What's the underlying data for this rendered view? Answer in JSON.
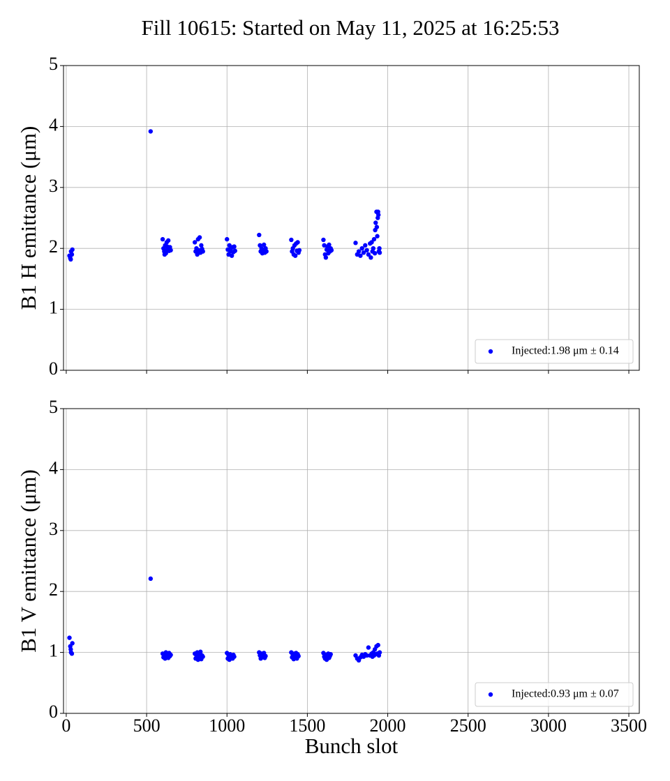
{
  "title": "Fill 10615: Started on May 11, 2025 at 16:25:53",
  "chart_data": [
    {
      "type": "scatter",
      "ylabel": "B1 H emittance (μm)",
      "show_xtick_labels": false,
      "xlim": [
        -17,
        3565
      ],
      "ylim": [
        0,
        5
      ],
      "xticks": [
        0,
        500,
        1000,
        1500,
        2000,
        2500,
        3000,
        3500
      ],
      "yticks": [
        0,
        1,
        2,
        3,
        4,
        5
      ],
      "grid": true,
      "legend": "lower right",
      "series": [
        {
          "name": "Injected:1.98 μm ± 0.14",
          "color": "#0000ff",
          "x": [
            20,
            25,
            30,
            35,
            38,
            28,
            525,
            600,
            605,
            610,
            615,
            620,
            625,
            630,
            635,
            640,
            645,
            650,
            612,
            628,
            800,
            805,
            810,
            815,
            820,
            825,
            830,
            835,
            840,
            845,
            850,
            818,
            1000,
            1005,
            1010,
            1015,
            1020,
            1025,
            1030,
            1035,
            1040,
            1045,
            1050,
            1200,
            1205,
            1210,
            1215,
            1220,
            1225,
            1230,
            1235,
            1240,
            1245,
            1400,
            1405,
            1410,
            1415,
            1420,
            1425,
            1430,
            1435,
            1440,
            1445,
            1450,
            1600,
            1605,
            1610,
            1615,
            1620,
            1625,
            1630,
            1635,
            1640,
            1645,
            1650,
            1800,
            1810,
            1820,
            1830,
            1840,
            1850,
            1860,
            1870,
            1880,
            1890,
            1895,
            1900,
            1905,
            1910,
            1915,
            1920,
            1922,
            1925,
            1930,
            1932,
            1935,
            1938,
            1940,
            1942,
            1945,
            1948,
            1950
          ],
          "values": [
            1.88,
            1.84,
            1.95,
            1.9,
            1.98,
            1.82,
            3.92,
            2.15,
            2.0,
            1.95,
            2.05,
            1.92,
            2.1,
            1.98,
            2.13,
            1.96,
            2.02,
            1.97,
            1.9,
            2.03,
            2.1,
            1.95,
            2.0,
            1.9,
            2.15,
            1.97,
            2.18,
            1.93,
            2.05,
            1.99,
            1.95,
            1.92,
            2.15,
            1.98,
            1.9,
            2.05,
            1.95,
            2.0,
            1.88,
            2.02,
            1.94,
            2.03,
            1.96,
            2.22,
            2.05,
            1.95,
            2.0,
            1.92,
            1.97,
            2.06,
            1.93,
            2.0,
            1.95,
            2.14,
            1.95,
            2.0,
            1.9,
            2.05,
            1.88,
            2.08,
            1.96,
            2.1,
            1.93,
            1.97,
            2.14,
            2.05,
            1.9,
            1.85,
            1.98,
            2.03,
            1.92,
            2.06,
            1.95,
            2.0,
            1.97,
            2.09,
            1.9,
            1.95,
            1.88,
            2.0,
            1.93,
            2.05,
            1.97,
            1.9,
            2.08,
            1.85,
            2.1,
            1.95,
            2.0,
            2.15,
            1.92,
            2.3,
            2.42,
            2.6,
            2.35,
            2.2,
            2.5,
            2.6,
            2.55,
            1.95,
            2.0,
            1.93
          ]
        }
      ]
    },
    {
      "type": "scatter",
      "ylabel": "B1 V emittance (μm)",
      "xlabel": "Bunch slot",
      "show_xtick_labels": true,
      "xlim": [
        -17,
        3565
      ],
      "ylim": [
        0,
        5
      ],
      "xticks": [
        0,
        500,
        1000,
        1500,
        2000,
        2500,
        3000,
        3500
      ],
      "yticks": [
        0,
        1,
        2,
        3,
        4,
        5
      ],
      "grid": true,
      "legend": "lower right",
      "series": [
        {
          "name": "Injected:0.93 μm ± 0.07",
          "color": "#0000ff",
          "x": [
            20,
            25,
            30,
            35,
            38,
            28,
            525,
            600,
            605,
            610,
            615,
            620,
            625,
            630,
            635,
            640,
            645,
            650,
            800,
            805,
            810,
            815,
            820,
            825,
            830,
            835,
            840,
            845,
            850,
            1000,
            1005,
            1010,
            1015,
            1020,
            1025,
            1030,
            1035,
            1040,
            1045,
            1200,
            1205,
            1210,
            1215,
            1220,
            1225,
            1230,
            1235,
            1240,
            1400,
            1405,
            1410,
            1415,
            1420,
            1425,
            1430,
            1435,
            1440,
            1445,
            1600,
            1605,
            1610,
            1615,
            1620,
            1625,
            1630,
            1635,
            1640,
            1645,
            1800,
            1810,
            1820,
            1830,
            1840,
            1850,
            1860,
            1870,
            1880,
            1890,
            1900,
            1905,
            1910,
            1915,
            1920,
            1925,
            1930,
            1935,
            1940,
            1945,
            1950
          ],
          "values": [
            1.24,
            1.1,
            1.0,
            0.98,
            1.15,
            1.05,
            2.21,
            0.98,
            0.92,
            0.95,
            0.9,
            1.0,
            0.93,
            0.97,
            0.91,
            0.99,
            0.94,
            0.96,
            0.98,
            0.9,
            0.95,
            1.0,
            0.88,
            0.97,
            0.92,
            1.01,
            0.89,
            0.95,
            0.93,
            0.99,
            0.9,
            0.95,
            0.88,
            0.97,
            0.92,
            0.94,
            0.9,
            0.96,
            0.93,
            1.0,
            0.95,
            0.9,
            0.98,
            0.92,
            0.96,
            0.99,
            0.91,
            0.94,
            1.0,
            0.92,
            0.96,
            0.89,
            0.98,
            0.93,
            0.99,
            0.9,
            0.97,
            0.94,
            0.99,
            0.93,
            0.9,
            0.96,
            0.88,
            0.95,
            0.98,
            0.91,
            0.94,
            0.97,
            0.95,
            0.9,
            0.87,
            0.92,
            0.96,
            0.93,
            0.97,
            0.95,
            1.08,
            0.95,
            0.98,
            0.93,
            1.0,
            0.95,
            1.05,
            0.97,
            1.1,
            0.98,
            1.12,
            0.95,
            1.0
          ]
        }
      ]
    }
  ]
}
